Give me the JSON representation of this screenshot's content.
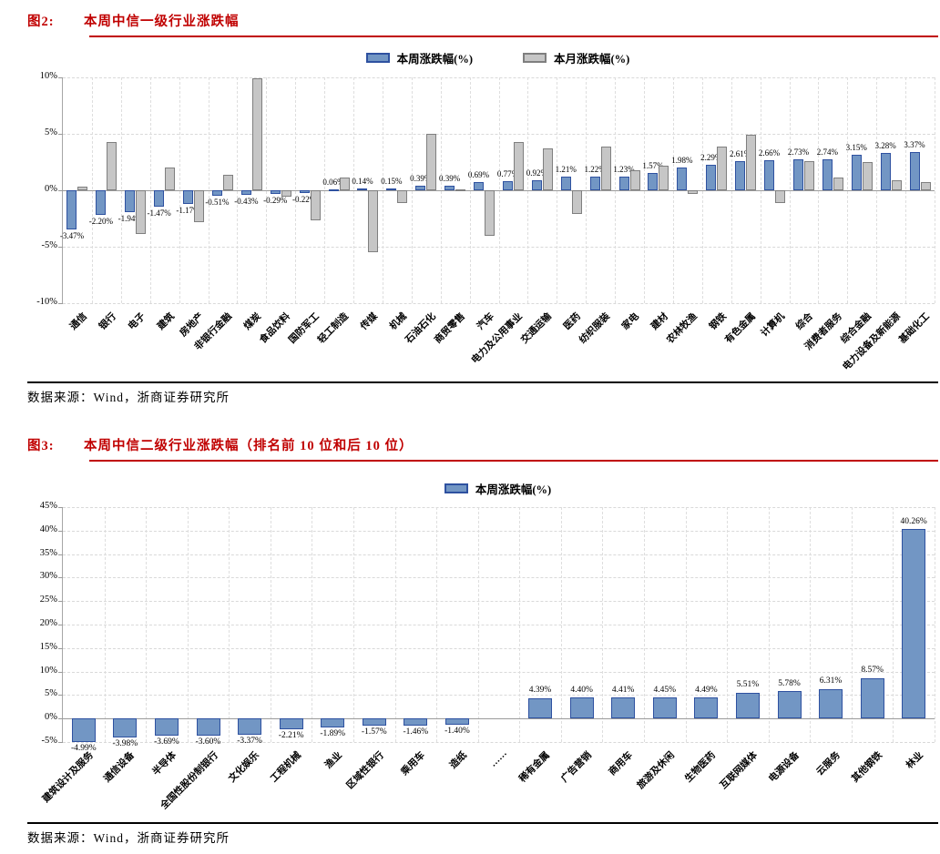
{
  "figure2": {
    "caption_prefix": "图2:",
    "caption_title": "本周中信一级行业涨跌幅",
    "source": "数据来源：Wind，浙商证券研究所"
  },
  "figure3": {
    "caption_prefix": "图3:",
    "caption_title": "本周中信二级行业涨跌幅（排名前 10 位和后 10 位）",
    "source": "数据来源：Wind，浙商证券研究所"
  },
  "colors": {
    "accent_red": "#c00000",
    "week_bar_fill": "#7296c4",
    "week_bar_border": "#2e51a0",
    "month_bar_fill": "#c6c6c6",
    "month_bar_border": "#7f7f7f",
    "grid": "#d9d9d9",
    "axis": "#9a9a9a"
  },
  "chart_data": [
    {
      "type": "bar",
      "title": "本周中信一级行业涨跌幅",
      "legend_position": "top",
      "grid": true,
      "ylim": [
        -10,
        10
      ],
      "yticks": [
        {
          "value": 10,
          "label": "10%"
        },
        {
          "value": 5,
          "label": "5%"
        },
        {
          "value": 0,
          "label": "0%"
        },
        {
          "value": -5,
          "label": "-5%"
        },
        {
          "value": -10,
          "label": "-10%"
        }
      ],
      "categories": [
        "通信",
        "银行",
        "电子",
        "建筑",
        "房地产",
        "非银行金融",
        "煤炭",
        "食品饮料",
        "国防军工",
        "轻工制造",
        "传媒",
        "机械",
        "石油石化",
        "商贸零售",
        "汽车",
        "电力及公用事业",
        "交通运输",
        "医药",
        "纺织服装",
        "家电",
        "建材",
        "农林牧渔",
        "钢铁",
        "有色金属",
        "计算机",
        "综合",
        "消费者服务",
        "综合金融",
        "电力设备及新能源",
        "基础化工"
      ],
      "series": [
        {
          "name": "本周涨跌幅(%)",
          "fill": "#7296c4",
          "border": "#2e51a0",
          "values": [
            -3.47,
            -2.2,
            -1.94,
            -1.47,
            -1.17,
            -0.51,
            -0.43,
            -0.29,
            -0.22,
            0.06,
            0.14,
            0.15,
            0.39,
            0.39,
            0.69,
            0.77,
            0.92,
            1.21,
            1.22,
            1.23,
            1.57,
            1.98,
            2.29,
            2.61,
            2.66,
            2.73,
            2.74,
            3.15,
            3.28,
            3.37
          ],
          "labels": [
            "-3.47%",
            "-2.20%",
            "-1.94%",
            "-1.47%",
            "-1.17%",
            "-0.51%",
            "-0.43%",
            "-0.29%",
            "-0.22%",
            "0.06%",
            "0.14%",
            "0.15%",
            "0.39%",
            "0.39%",
            "0.69%",
            "0.77%",
            "0.92%",
            "1.21%",
            "1.22%",
            "1.23%",
            "1.57%",
            "1.98%",
            "2.29%",
            "2.61%",
            "2.66%",
            "2.73%",
            "2.74%",
            "3.15%",
            "3.28%",
            "3.37%"
          ]
        },
        {
          "name": "本月涨跌幅(%)",
          "fill": "#c6c6c6",
          "border": "#7f7f7f",
          "values": [
            0.3,
            4.3,
            -3.9,
            2.0,
            -2.8,
            1.4,
            9.9,
            -0.6,
            -2.7,
            1.1,
            -5.5,
            -1.1,
            5.0,
            0.1,
            -4.0,
            4.3,
            3.7,
            -2.1,
            3.9,
            1.8,
            2.2,
            -0.3,
            3.9,
            4.9,
            -1.1,
            2.6,
            1.1,
            2.5,
            0.9,
            0.7
          ],
          "labels": null
        }
      ]
    },
    {
      "type": "bar",
      "title": "本周中信二级行业涨跌幅（排名前 10 位和后 10 位）",
      "legend_position": "top",
      "grid": true,
      "ylim": [
        -5,
        45
      ],
      "yticks": [
        {
          "value": 45,
          "label": "45%"
        },
        {
          "value": 40,
          "label": "40%"
        },
        {
          "value": 35,
          "label": "35%"
        },
        {
          "value": 30,
          "label": "30%"
        },
        {
          "value": 25,
          "label": "25%"
        },
        {
          "value": 20,
          "label": "20%"
        },
        {
          "value": 15,
          "label": "15%"
        },
        {
          "value": 10,
          "label": "10%"
        },
        {
          "value": 5,
          "label": "5%"
        },
        {
          "value": 0,
          "label": "0%"
        },
        {
          "value": -5,
          "label": "-5%"
        }
      ],
      "categories": [
        "建筑设计及服务",
        "通信设备",
        "半导体",
        "全国性股份制银行",
        "文化娱乐",
        "工程机械",
        "渔业",
        "区域性银行",
        "乘用车",
        "造纸",
        "……",
        "稀有金属",
        "广告营销",
        "商用车",
        "旅游及休闲",
        "生物医药",
        "互联网媒体",
        "电源设备",
        "云服务",
        "其他钢铁",
        "林业"
      ],
      "series": [
        {
          "name": "本周涨跌幅(%)",
          "fill": "#7296c4",
          "border": "#2e51a0",
          "values": [
            -4.99,
            -3.98,
            -3.69,
            -3.6,
            -3.37,
            -2.21,
            -1.89,
            -1.57,
            -1.46,
            -1.4,
            null,
            4.39,
            4.4,
            4.41,
            4.45,
            4.49,
            5.51,
            5.78,
            6.31,
            8.57,
            40.26
          ],
          "labels": [
            "-4.99%",
            "-3.98%",
            "-3.69%",
            "-3.60%",
            "-3.37%",
            "-2.21%",
            "-1.89%",
            "-1.57%",
            "-1.46%",
            "-1.40%",
            "",
            "4.39%",
            "4.40%",
            "4.41%",
            "4.45%",
            "4.49%",
            "5.51%",
            "5.78%",
            "6.31%",
            "8.57%",
            "40.26%"
          ]
        }
      ]
    }
  ]
}
